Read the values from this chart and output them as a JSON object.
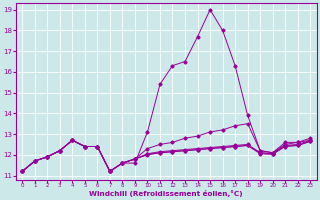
{
  "xlabel": "Windchill (Refroidissement éolien,°C)",
  "bg_color": "#cce8e8",
  "line_color": "#990099",
  "xlim_min": -0.5,
  "xlim_max": 23.5,
  "ylim_min": 10.8,
  "ylim_max": 19.3,
  "x_ticks": [
    0,
    1,
    2,
    3,
    4,
    5,
    6,
    7,
    8,
    9,
    10,
    11,
    12,
    13,
    14,
    15,
    16,
    17,
    18,
    19,
    20,
    21,
    22,
    23
  ],
  "y_ticks": [
    11,
    12,
    13,
    14,
    15,
    16,
    17,
    18,
    19
  ],
  "series": [
    [
      11.2,
      11.7,
      11.9,
      12.2,
      12.7,
      12.4,
      12.4,
      11.2,
      11.6,
      11.6,
      13.1,
      15.4,
      16.3,
      16.5,
      17.7,
      19.0,
      18.0,
      16.3,
      13.9,
      12.2,
      12.1,
      12.6,
      12.6,
      12.7
    ],
    [
      11.2,
      11.7,
      11.9,
      12.2,
      12.7,
      12.4,
      12.4,
      11.2,
      11.6,
      11.8,
      12.3,
      12.5,
      12.6,
      12.8,
      12.9,
      13.1,
      13.2,
      13.4,
      13.5,
      12.2,
      12.1,
      12.5,
      12.6,
      12.8
    ],
    [
      11.2,
      11.7,
      11.9,
      12.2,
      12.7,
      12.4,
      12.4,
      11.2,
      11.6,
      11.8,
      12.0,
      12.1,
      12.15,
      12.2,
      12.25,
      12.3,
      12.35,
      12.4,
      12.45,
      12.1,
      12.05,
      12.4,
      12.45,
      12.65
    ],
    [
      11.2,
      11.7,
      11.9,
      12.2,
      12.7,
      12.4,
      12.4,
      11.2,
      11.6,
      11.8,
      12.05,
      12.15,
      12.2,
      12.25,
      12.3,
      12.35,
      12.4,
      12.45,
      12.5,
      12.1,
      12.05,
      12.45,
      12.5,
      12.7
    ],
    [
      11.2,
      11.7,
      11.9,
      12.2,
      12.7,
      12.4,
      12.4,
      11.2,
      11.6,
      11.8,
      12.02,
      12.1,
      12.15,
      12.2,
      12.25,
      12.3,
      12.35,
      12.4,
      12.45,
      12.05,
      12.02,
      12.42,
      12.45,
      12.65
    ]
  ]
}
